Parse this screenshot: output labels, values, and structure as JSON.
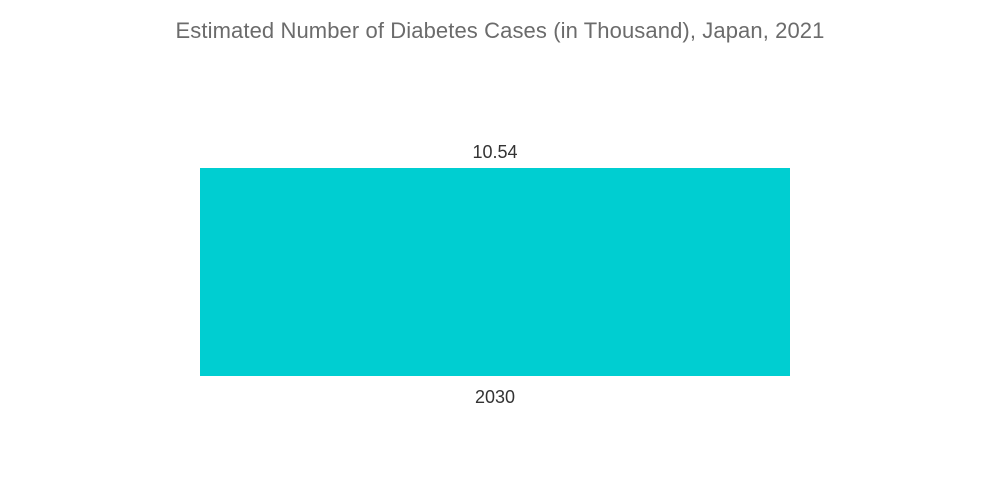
{
  "chart_data": {
    "type": "bar",
    "title": "Estimated Number of Diabetes Cases (in Thousand), Japan, 2021",
    "categories": [
      "2030"
    ],
    "values": [
      10.54
    ],
    "xlabel": "",
    "ylabel": "",
    "ylim": [
      0,
      10.54
    ],
    "grid": false,
    "legend": "none",
    "bar_color": "#00CED1"
  }
}
